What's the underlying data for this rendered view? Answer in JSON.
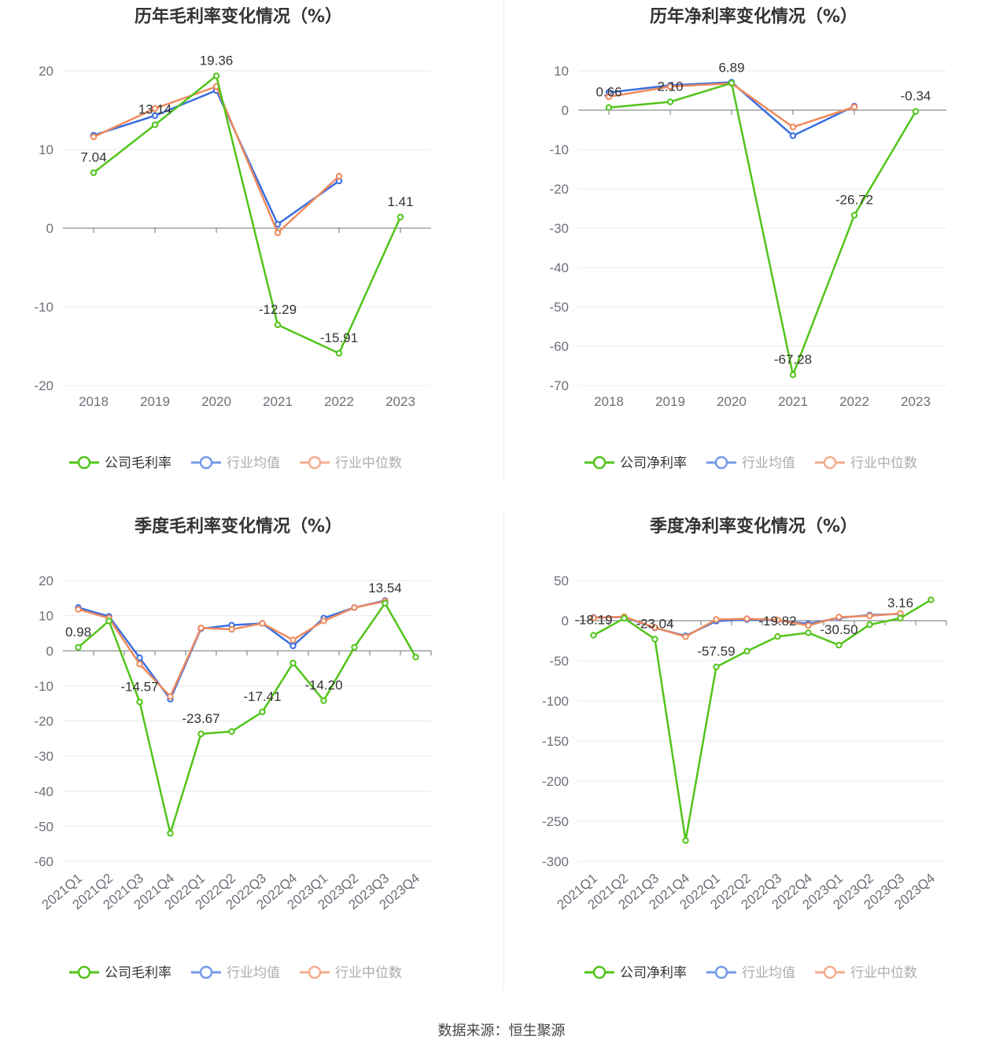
{
  "colors": {
    "company": "#52c41a",
    "avg": "#3b6fe0",
    "median": "#f08a5d",
    "grid": "#e6e8f0",
    "axis": "#6e7079",
    "title": "#333333"
  },
  "source_text": "数据来源：恒生聚源",
  "chart_data": [
    {
      "type": "line",
      "title": "历年毛利率变化情况（%）",
      "categories": [
        "2018",
        "2019",
        "2020",
        "2021",
        "2022",
        "2023"
      ],
      "ylim": [
        -20,
        20
      ],
      "yticks": [
        20,
        10,
        0,
        -10,
        -20
      ],
      "rotate_x": false,
      "legend_position": "bottom",
      "series": [
        {
          "name": "公司毛利率",
          "role": "company",
          "values": [
            7.04,
            13.14,
            19.36,
            -12.29,
            -15.91,
            1.41
          ],
          "labels": [
            "7.04",
            "13.14",
            "19.36",
            "-12.29",
            "-15.91",
            "1.41"
          ]
        },
        {
          "name": "行业均值",
          "role": "avg",
          "values": [
            11.8,
            14.3,
            17.5,
            0.5,
            6.0,
            null
          ]
        },
        {
          "name": "行业中位数",
          "role": "median",
          "values": [
            11.6,
            15.2,
            18.0,
            -0.6,
            6.6,
            null
          ]
        }
      ]
    },
    {
      "type": "line",
      "title": "历年净利率变化情况（%）",
      "categories": [
        "2018",
        "2019",
        "2020",
        "2021",
        "2022",
        "2023"
      ],
      "ylim": [
        -70,
        10
      ],
      "yticks": [
        10,
        0,
        -10,
        -20,
        -30,
        -40,
        -50,
        -60,
        -70
      ],
      "rotate_x": false,
      "legend_position": "bottom",
      "series": [
        {
          "name": "公司净利率",
          "role": "company",
          "values": [
            0.66,
            2.1,
            6.89,
            -67.28,
            -26.72,
            -0.34
          ],
          "labels": [
            "0.66",
            "2.10",
            "6.89",
            "-67.28",
            "-26.72",
            "-0.34"
          ]
        },
        {
          "name": "行业均值",
          "role": "avg",
          "values": [
            4.5,
            6.3,
            7.1,
            -6.5,
            1.0,
            null
          ]
        },
        {
          "name": "行业中位数",
          "role": "median",
          "values": [
            3.4,
            6.0,
            6.8,
            -4.3,
            0.8,
            null
          ]
        }
      ]
    },
    {
      "type": "line",
      "title": "季度毛利率变化情况（%）",
      "categories": [
        "2021Q1",
        "2021Q2",
        "2021Q3",
        "2021Q4",
        "2022Q1",
        "2022Q2",
        "2022Q3",
        "2022Q4",
        "2023Q1",
        "2023Q2",
        "2023Q3",
        "2023Q4"
      ],
      "ylim": [
        -60,
        20
      ],
      "yticks": [
        20,
        10,
        0,
        -10,
        -20,
        -30,
        -40,
        -50,
        -60
      ],
      "rotate_x": true,
      "legend_position": "bottom",
      "series": [
        {
          "name": "公司毛利率",
          "role": "company",
          "values": [
            0.98,
            8.5,
            -14.57,
            -52.0,
            -23.67,
            -23.0,
            -17.41,
            -3.5,
            -14.2,
            1.0,
            13.54,
            -1.8
          ],
          "labels": [
            "0.98",
            null,
            "-14.57",
            null,
            "-23.67",
            null,
            "-17.41",
            null,
            "-14.20",
            null,
            "13.54",
            null
          ]
        },
        {
          "name": "行业均值",
          "role": "avg",
          "values": [
            12.3,
            9.8,
            -2.0,
            -13.8,
            6.3,
            7.3,
            7.8,
            1.4,
            9.3,
            12.3,
            14.3,
            null
          ]
        },
        {
          "name": "行业中位数",
          "role": "median",
          "values": [
            11.8,
            9.3,
            -3.8,
            -13.0,
            6.5,
            6.1,
            7.8,
            3.1,
            8.5,
            12.3,
            14.1,
            null
          ]
        }
      ]
    },
    {
      "type": "line",
      "title": "季度净利率变化情况（%）",
      "categories": [
        "2021Q1",
        "2021Q2",
        "2021Q3",
        "2021Q4",
        "2022Q1",
        "2022Q2",
        "2022Q3",
        "2022Q4",
        "2023Q1",
        "2023Q2",
        "2023Q3",
        "2023Q4"
      ],
      "ylim": [
        -300,
        50
      ],
      "yticks": [
        50,
        0,
        -50,
        -100,
        -150,
        -200,
        -250,
        -300
      ],
      "rotate_x": true,
      "legend_position": "bottom",
      "series": [
        {
          "name": "公司净利率",
          "role": "company",
          "values": [
            -18.19,
            3.0,
            -23.04,
            -274.0,
            -57.59,
            -38.0,
            -19.82,
            -15.0,
            -30.5,
            -5.0,
            3.16,
            26.0
          ],
          "labels": [
            "-18.19",
            null,
            "-23.04",
            null,
            "-57.59",
            null,
            "-19.82",
            null,
            "-30.50",
            null,
            "3.16",
            null
          ]
        },
        {
          "name": "行业均值",
          "role": "avg",
          "values": [
            4.0,
            4.5,
            -9.0,
            -19.0,
            -0.5,
            1.5,
            0.5,
            -4.0,
            3.5,
            7.0,
            8.5,
            null
          ]
        },
        {
          "name": "行业中位数",
          "role": "median",
          "values": [
            3.5,
            5.0,
            -8.5,
            -20.0,
            1.5,
            2.5,
            1.0,
            -6.0,
            4.5,
            6.0,
            9.0,
            null
          ]
        }
      ]
    }
  ]
}
